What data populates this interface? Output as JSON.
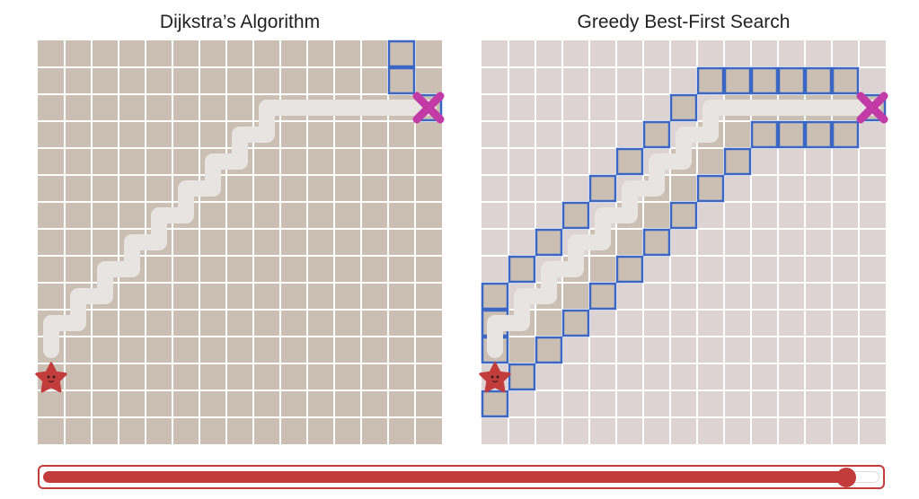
{
  "panels": [
    {
      "title": "Dijkstra’s Algorithm",
      "board_color": "#cbbfb3",
      "visited_color": "#cbbfb3",
      "frontier_color": "#3b66c4",
      "frontier": [
        [
          13,
          0
        ],
        [
          13,
          1
        ],
        [
          14,
          2
        ]
      ],
      "path": [
        [
          0,
          11
        ],
        [
          0,
          10
        ],
        [
          1,
          10
        ],
        [
          1,
          9
        ],
        [
          2,
          9
        ],
        [
          2,
          8
        ],
        [
          3,
          8
        ],
        [
          3,
          7
        ],
        [
          4,
          7
        ],
        [
          4,
          6
        ],
        [
          5,
          6
        ],
        [
          5,
          5
        ],
        [
          6,
          5
        ],
        [
          6,
          4
        ],
        [
          7,
          4
        ],
        [
          7,
          3
        ],
        [
          8,
          3
        ],
        [
          8,
          2
        ],
        [
          9,
          2
        ],
        [
          10,
          2
        ],
        [
          11,
          2
        ],
        [
          12,
          2
        ],
        [
          13,
          2
        ],
        [
          14,
          2
        ]
      ]
    },
    {
      "title": "Greedy Best-First Search",
      "board_color": "#ddd3d3",
      "visited_color": "#cbbfb3",
      "frontier_color": "#3b66c4",
      "visited": [
        [
          1,
          11
        ],
        [
          1,
          10
        ],
        [
          2,
          10
        ],
        [
          2,
          9
        ],
        [
          3,
          9
        ],
        [
          3,
          8
        ],
        [
          4,
          8
        ],
        [
          4,
          7
        ],
        [
          5,
          7
        ],
        [
          5,
          6
        ],
        [
          6,
          6
        ],
        [
          6,
          5
        ],
        [
          7,
          5
        ],
        [
          7,
          4
        ],
        [
          8,
          4
        ],
        [
          8,
          3
        ],
        [
          9,
          3
        ],
        [
          9,
          2
        ],
        [
          10,
          2
        ],
        [
          11,
          2
        ],
        [
          12,
          2
        ],
        [
          13,
          2
        ]
      ],
      "frontier": [
        [
          0,
          10
        ],
        [
          0,
          11
        ],
        [
          0,
          13
        ],
        [
          1,
          12
        ],
        [
          2,
          11
        ],
        [
          3,
          10
        ],
        [
          4,
          9
        ],
        [
          5,
          8
        ],
        [
          6,
          7
        ],
        [
          7,
          6
        ],
        [
          8,
          5
        ],
        [
          9,
          4
        ],
        [
          10,
          3
        ],
        [
          11,
          3
        ],
        [
          12,
          3
        ],
        [
          13,
          3
        ],
        [
          10,
          1
        ],
        [
          11,
          1
        ],
        [
          12,
          1
        ],
        [
          13,
          1
        ],
        [
          14,
          2
        ],
        [
          0,
          9
        ],
        [
          1,
          8
        ],
        [
          2,
          7
        ],
        [
          3,
          6
        ],
        [
          4,
          5
        ],
        [
          5,
          4
        ],
        [
          6,
          3
        ],
        [
          7,
          2
        ],
        [
          8,
          1
        ],
        [
          9,
          1
        ]
      ],
      "path": [
        [
          0,
          11
        ],
        [
          0,
          10
        ],
        [
          1,
          10
        ],
        [
          1,
          9
        ],
        [
          2,
          9
        ],
        [
          2,
          8
        ],
        [
          3,
          8
        ],
        [
          3,
          7
        ],
        [
          4,
          7
        ],
        [
          4,
          6
        ],
        [
          5,
          6
        ],
        [
          5,
          5
        ],
        [
          6,
          5
        ],
        [
          6,
          4
        ],
        [
          7,
          4
        ],
        [
          7,
          3
        ],
        [
          8,
          3
        ],
        [
          8,
          2
        ],
        [
          9,
          2
        ],
        [
          10,
          2
        ],
        [
          11,
          2
        ],
        [
          12,
          2
        ],
        [
          13,
          2
        ],
        [
          14,
          2
        ]
      ]
    }
  ],
  "start": [
    0,
    12
  ],
  "goal": [
    14,
    2
  ],
  "icons": {
    "start": "star-character-icon",
    "goal": "x-mark-icon"
  },
  "colors": {
    "path": "#e8e4e2",
    "start": "#c23c3c",
    "goal": "#c13aa6",
    "grid_line": "#ffffff"
  },
  "slider": {
    "progress": 0.96
  }
}
